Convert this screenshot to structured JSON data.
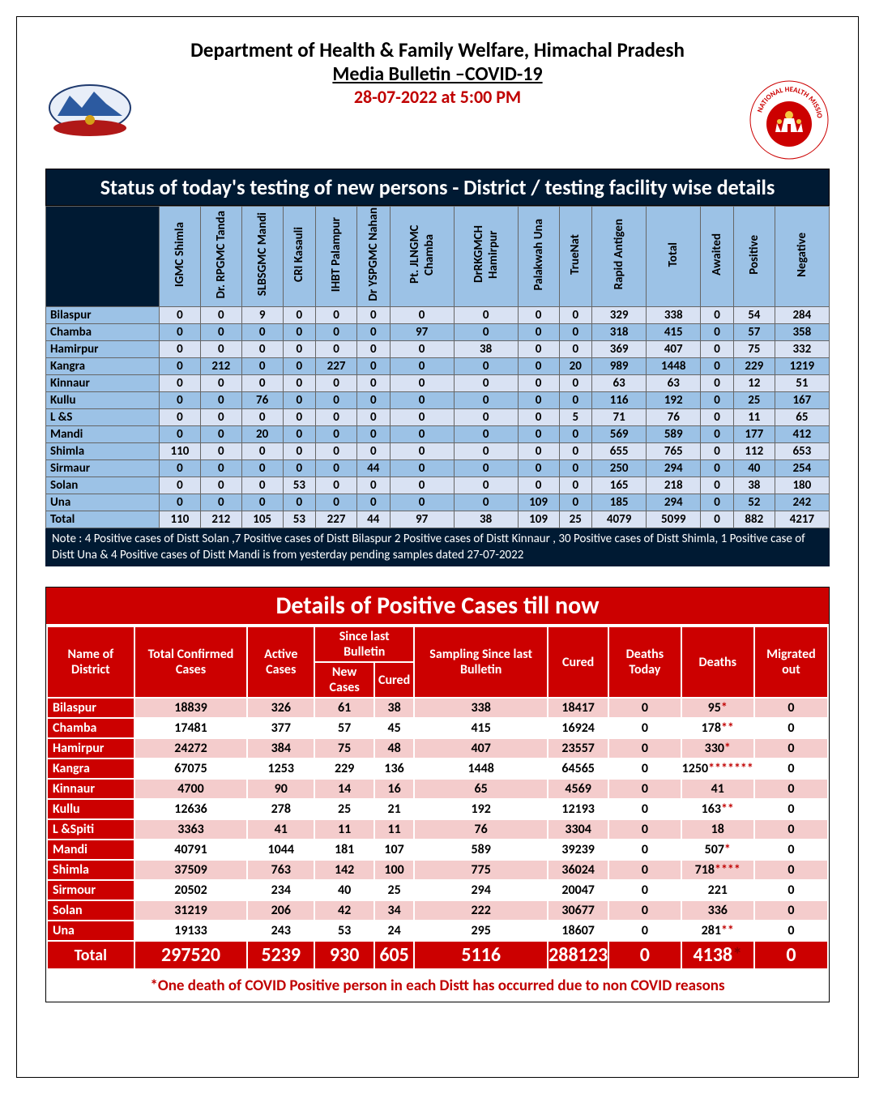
{
  "header": {
    "title": "Department of Health & Family Welfare, Himachal Pradesh",
    "subtitle": "Media Bulletin –COVID-19",
    "datetime": "28-07-2022 at 5:00 PM"
  },
  "colors": {
    "dark_navy": "#001a33",
    "header_blue": "#9cc2e6",
    "row_alt_blue": "#d9e2f3",
    "red_primary": "#cc0000",
    "row_alt_pink": "#f4cccc",
    "accent_red": "#c00000"
  },
  "table1": {
    "title": "Status of today's testing of new persons - District / testing facility wise details",
    "columns": [
      "IGMC Shimla",
      "Dr. RPGMC Tanda",
      "SLBSGMC Mandi",
      "CRI Kasauli",
      "IHBT Palampur",
      "Dr YSPGMC Nahan",
      "Pt. JLNGMC Chamba",
      "DrRKGMCH Hamirpur",
      "Palakwah Una",
      "TrueNat",
      "Rapid  Antigen",
      "Total",
      "Awaited",
      "Positive",
      "Negative"
    ],
    "rows": [
      {
        "d": "Bilaspur",
        "v": [
          0,
          0,
          9,
          0,
          0,
          0,
          0,
          0,
          0,
          0,
          329,
          338,
          0,
          54,
          284
        ]
      },
      {
        "d": "Chamba",
        "v": [
          0,
          0,
          0,
          0,
          0,
          0,
          97,
          0,
          0,
          0,
          318,
          415,
          0,
          57,
          358
        ]
      },
      {
        "d": "Hamirpur",
        "v": [
          0,
          0,
          0,
          0,
          0,
          0,
          0,
          38,
          0,
          0,
          369,
          407,
          0,
          75,
          332
        ]
      },
      {
        "d": "Kangra",
        "v": [
          0,
          212,
          0,
          0,
          227,
          0,
          0,
          0,
          0,
          20,
          989,
          1448,
          0,
          229,
          1219
        ]
      },
      {
        "d": "Kinnaur",
        "v": [
          0,
          0,
          0,
          0,
          0,
          0,
          0,
          0,
          0,
          0,
          63,
          63,
          0,
          12,
          51
        ]
      },
      {
        "d": "Kullu",
        "v": [
          0,
          0,
          76,
          0,
          0,
          0,
          0,
          0,
          0,
          0,
          116,
          192,
          0,
          25,
          167
        ]
      },
      {
        "d": "L &S",
        "v": [
          0,
          0,
          0,
          0,
          0,
          0,
          0,
          0,
          0,
          5,
          71,
          76,
          0,
          11,
          65
        ]
      },
      {
        "d": "Mandi",
        "v": [
          0,
          0,
          20,
          0,
          0,
          0,
          0,
          0,
          0,
          0,
          569,
          589,
          0,
          177,
          412
        ]
      },
      {
        "d": "Shimla",
        "v": [
          110,
          0,
          0,
          0,
          0,
          0,
          0,
          0,
          0,
          0,
          655,
          765,
          0,
          112,
          653
        ]
      },
      {
        "d": "Sirmaur",
        "v": [
          0,
          0,
          0,
          0,
          0,
          44,
          0,
          0,
          0,
          0,
          250,
          294,
          0,
          40,
          254
        ]
      },
      {
        "d": "Solan",
        "v": [
          0,
          0,
          0,
          53,
          0,
          0,
          0,
          0,
          0,
          0,
          165,
          218,
          0,
          38,
          180
        ]
      },
      {
        "d": "Una",
        "v": [
          0,
          0,
          0,
          0,
          0,
          0,
          0,
          0,
          109,
          0,
          185,
          294,
          0,
          52,
          242
        ]
      },
      {
        "d": "Total",
        "v": [
          110,
          212,
          105,
          53,
          227,
          44,
          97,
          38,
          109,
          25,
          4079,
          5099,
          0,
          882,
          4217
        ]
      }
    ],
    "note": "Note : 4 Positive cases of Distt Solan ,7 Positive cases of Distt Bilaspur  2 Positive cases of Distt Kinnaur , 30  Positive cases of Distt Shimla, 1 Positive case of Distt Una  &  4 Positive cases of Distt Mandi  is from yesterday pending samples dated 27-07-2022"
  },
  "table2": {
    "title": "Details of Positive Cases till now",
    "headers": {
      "name": "Name of District",
      "total": "Total Confirmed Cases",
      "active": "Active Cases",
      "since": "Since last Bulletin",
      "new": "New Cases",
      "cured_sub": "Cured",
      "sampling": "Sampling Since last Bulletin",
      "cured": "Cured",
      "deaths_today": "Deaths Today",
      "deaths": "Deaths",
      "migrated": "Migrated out"
    },
    "rows": [
      {
        "d": "Bilaspur",
        "v": [
          18839,
          326,
          61,
          38,
          338,
          18417,
          0,
          "95",
          "*",
          0
        ]
      },
      {
        "d": "Chamba",
        "v": [
          17481,
          377,
          57,
          45,
          415,
          16924,
          0,
          "178",
          "**",
          0
        ]
      },
      {
        "d": "Hamirpur",
        "v": [
          24272,
          384,
          75,
          48,
          407,
          23557,
          0,
          "330",
          "*",
          0
        ]
      },
      {
        "d": "Kangra",
        "v": [
          67075,
          1253,
          229,
          136,
          1448,
          64565,
          0,
          "1250",
          "*******",
          0
        ]
      },
      {
        "d": "Kinnaur",
        "v": [
          4700,
          90,
          14,
          16,
          65,
          4569,
          0,
          "41",
          "",
          0
        ]
      },
      {
        "d": "Kullu",
        "v": [
          12636,
          278,
          25,
          21,
          192,
          12193,
          0,
          "163",
          "**",
          0
        ]
      },
      {
        "d": "L &Spiti",
        "v": [
          3363,
          41,
          11,
          11,
          76,
          3304,
          0,
          "18",
          "",
          0
        ]
      },
      {
        "d": "Mandi",
        "v": [
          40791,
          1044,
          181,
          107,
          589,
          39239,
          0,
          "507",
          "*",
          0
        ]
      },
      {
        "d": "Shimla",
        "v": [
          37509,
          763,
          142,
          100,
          775,
          36024,
          0,
          "718",
          "****",
          0
        ]
      },
      {
        "d": "Sirmour",
        "v": [
          20502,
          234,
          40,
          25,
          294,
          20047,
          0,
          "221",
          "",
          0
        ]
      },
      {
        "d": "Solan",
        "v": [
          31219,
          206,
          42,
          34,
          222,
          30677,
          0,
          "336",
          "",
          0
        ]
      },
      {
        "d": "Una",
        "v": [
          19133,
          243,
          53,
          24,
          295,
          18607,
          0,
          "281",
          "**",
          0
        ]
      }
    ],
    "totals": {
      "label": "Total",
      "v": [
        297520,
        5239,
        930,
        605,
        5116,
        288123,
        0,
        "4138",
        "*",
        0
      ]
    },
    "footnote": "*One death of COVID Positive person in each Distt has occurred due to non COVID reasons"
  }
}
